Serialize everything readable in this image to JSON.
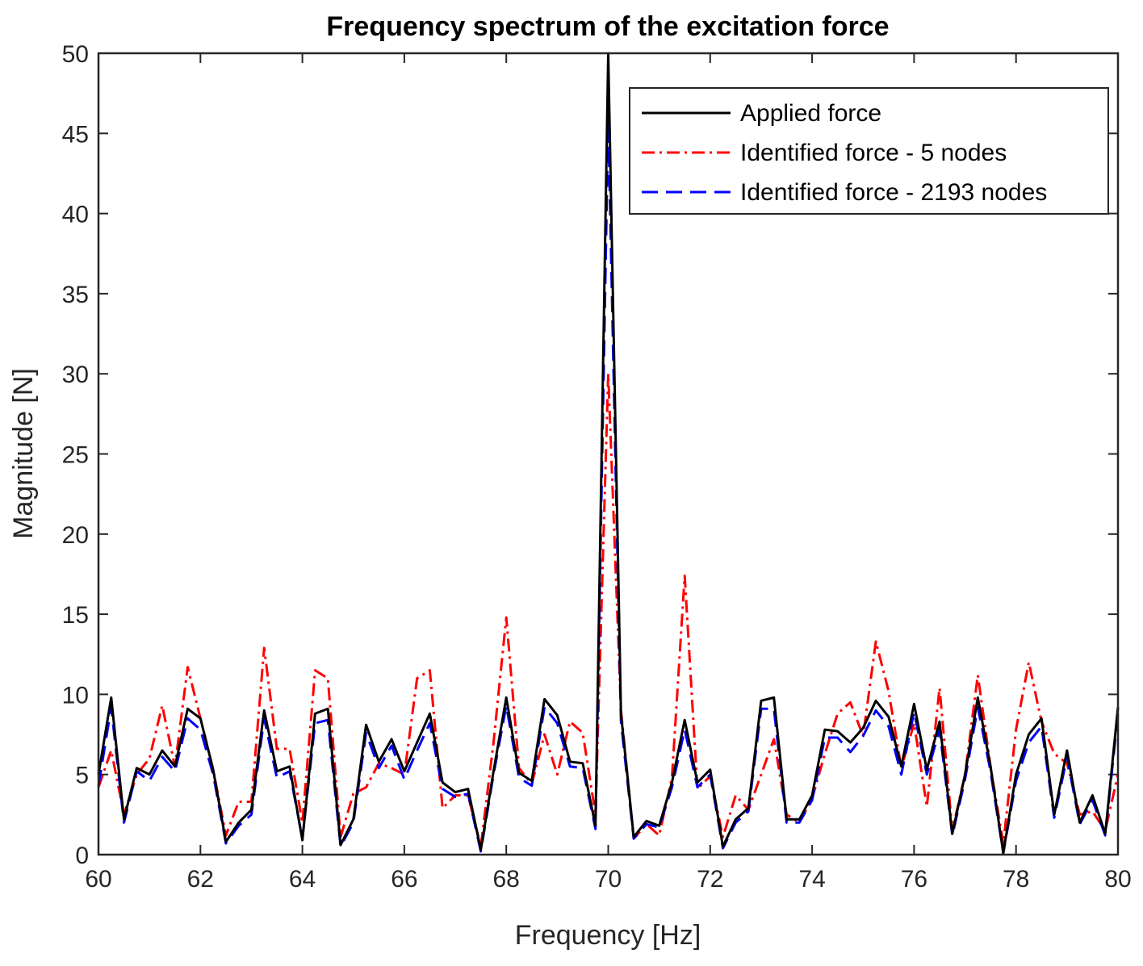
{
  "chart_data": {
    "type": "line",
    "title": "Frequency spectrum of the excitation force",
    "xlabel": "Frequency [Hz]",
    "ylabel": "Magnitude [N]",
    "xlim": [
      60,
      80
    ],
    "ylim": [
      0,
      50
    ],
    "xticks": [
      "60",
      "62",
      "64",
      "66",
      "68",
      "70",
      "72",
      "74",
      "76",
      "78",
      "80"
    ],
    "yticks": [
      "0",
      "5",
      "10",
      "15",
      "20",
      "25",
      "30",
      "35",
      "40",
      "45",
      "50"
    ],
    "grid": false,
    "legend_position": "top-right",
    "x": [
      60.0,
      60.25,
      60.5,
      60.75,
      61.0,
      61.25,
      61.5,
      61.75,
      62.0,
      62.25,
      62.5,
      62.75,
      63.0,
      63.25,
      63.5,
      63.75,
      64.0,
      64.25,
      64.5,
      64.75,
      65.0,
      65.25,
      65.5,
      65.75,
      66.0,
      66.25,
      66.5,
      66.75,
      67.0,
      67.25,
      67.5,
      67.75,
      68.0,
      68.25,
      68.5,
      68.75,
      69.0,
      69.25,
      69.5,
      69.75,
      70.0,
      70.25,
      70.5,
      70.75,
      71.0,
      71.25,
      71.5,
      71.75,
      72.0,
      72.25,
      72.5,
      72.75,
      73.0,
      73.25,
      73.5,
      73.75,
      74.0,
      74.25,
      74.5,
      74.75,
      75.0,
      75.25,
      75.5,
      75.75,
      76.0,
      76.25,
      76.5,
      76.75,
      77.0,
      77.25,
      77.5,
      77.75,
      78.0,
      78.25,
      78.5,
      78.75,
      79.0,
      79.25,
      79.5,
      79.75,
      80.0
    ],
    "series": [
      {
        "name": "Applied force",
        "color": "#000000",
        "dash": "solid",
        "values": [
          5.0,
          9.8,
          2.2,
          5.4,
          5.0,
          6.5,
          5.5,
          9.1,
          8.5,
          5.3,
          0.8,
          2.0,
          2.8,
          9.0,
          5.2,
          5.5,
          0.9,
          8.8,
          9.1,
          0.6,
          2.2,
          8.1,
          5.8,
          7.2,
          5.2,
          7.0,
          8.8,
          4.5,
          3.9,
          4.1,
          0.3,
          5.2,
          9.8,
          5.1,
          4.6,
          9.7,
          8.7,
          5.8,
          5.7,
          1.8,
          50.0,
          8.8,
          1.1,
          2.1,
          1.8,
          4.5,
          8.4,
          4.5,
          5.3,
          0.5,
          2.2,
          2.9,
          9.6,
          9.8,
          2.2,
          2.2,
          3.7,
          7.8,
          7.7,
          7.0,
          7.9,
          9.6,
          8.6,
          5.5,
          9.4,
          5.3,
          8.3,
          1.3,
          5.0,
          9.8,
          5.5,
          0.1,
          5.0,
          7.5,
          8.5,
          2.5,
          6.5,
          2.0,
          3.7,
          1.3,
          9.2
        ]
      },
      {
        "name": "Identified force - 5 nodes",
        "color": "#ff0000",
        "dash": "dashdot",
        "values": [
          4.2,
          6.5,
          2.5,
          5.0,
          6.0,
          9.3,
          5.5,
          11.7,
          8.5,
          5.3,
          1.2,
          3.3,
          3.3,
          12.9,
          6.6,
          6.6,
          2.0,
          11.5,
          11.0,
          1.1,
          3.8,
          4.2,
          5.7,
          5.4,
          5.0,
          11.0,
          11.5,
          2.9,
          3.7,
          3.7,
          0.5,
          7.0,
          14.8,
          5.4,
          4.4,
          7.5,
          5.0,
          8.3,
          7.6,
          2.5,
          30.0,
          9.0,
          1.0,
          1.9,
          1.2,
          4.8,
          17.4,
          4.1,
          4.9,
          1.1,
          3.7,
          2.8,
          5.0,
          7.2,
          2.5,
          2.0,
          3.5,
          6.3,
          8.8,
          9.5,
          7.4,
          13.3,
          10.2,
          5.4,
          8.2,
          3.0,
          10.4,
          1.5,
          5.0,
          11.2,
          5.5,
          0.7,
          7.8,
          12.0,
          8.3,
          6.3,
          5.7,
          2.5,
          2.7,
          1.5,
          5.0
        ]
      },
      {
        "name": "Identified force - 2193 nodes",
        "color": "#0000ff",
        "dash": "dashed",
        "values": [
          4.3,
          9.2,
          2.0,
          5.2,
          4.6,
          6.1,
          5.2,
          8.5,
          7.8,
          5.0,
          0.7,
          1.8,
          2.5,
          8.5,
          4.8,
          5.2,
          1.0,
          8.2,
          8.4,
          0.5,
          2.0,
          7.6,
          5.4,
          6.8,
          4.7,
          6.5,
          8.2,
          4.1,
          3.6,
          3.8,
          0.2,
          5.0,
          9.3,
          4.8,
          4.3,
          9.2,
          8.2,
          5.5,
          5.4,
          1.6,
          45.8,
          8.3,
          1.0,
          1.9,
          1.7,
          4.2,
          7.8,
          4.2,
          5.0,
          0.4,
          2.0,
          2.7,
          9.1,
          9.1,
          2.0,
          2.0,
          3.4,
          7.3,
          7.3,
          6.4,
          7.4,
          9.0,
          8.0,
          5.0,
          8.9,
          5.0,
          7.8,
          1.2,
          4.7,
          9.2,
          5.2,
          0.1,
          4.6,
          7.0,
          8.0,
          2.3,
          6.1,
          1.9,
          3.4,
          1.2,
          8.8
        ]
      }
    ]
  }
}
